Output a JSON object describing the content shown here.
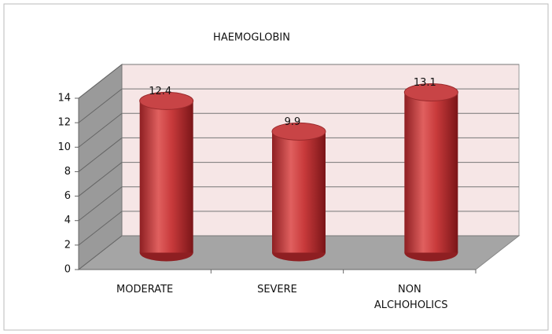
{
  "chart_data": {
    "type": "bar",
    "title": "HAEMOGLOBIN",
    "categories": [
      "MODERATE",
      "SEVERE",
      "NON ALCHOHOLICS"
    ],
    "values": [
      12.4,
      9.9,
      13.1
    ],
    "color": "#c0393b",
    "ylim": [
      0,
      14
    ],
    "yticks": [
      0,
      2,
      4,
      6,
      8,
      10,
      12,
      14
    ],
    "grid": true
  }
}
